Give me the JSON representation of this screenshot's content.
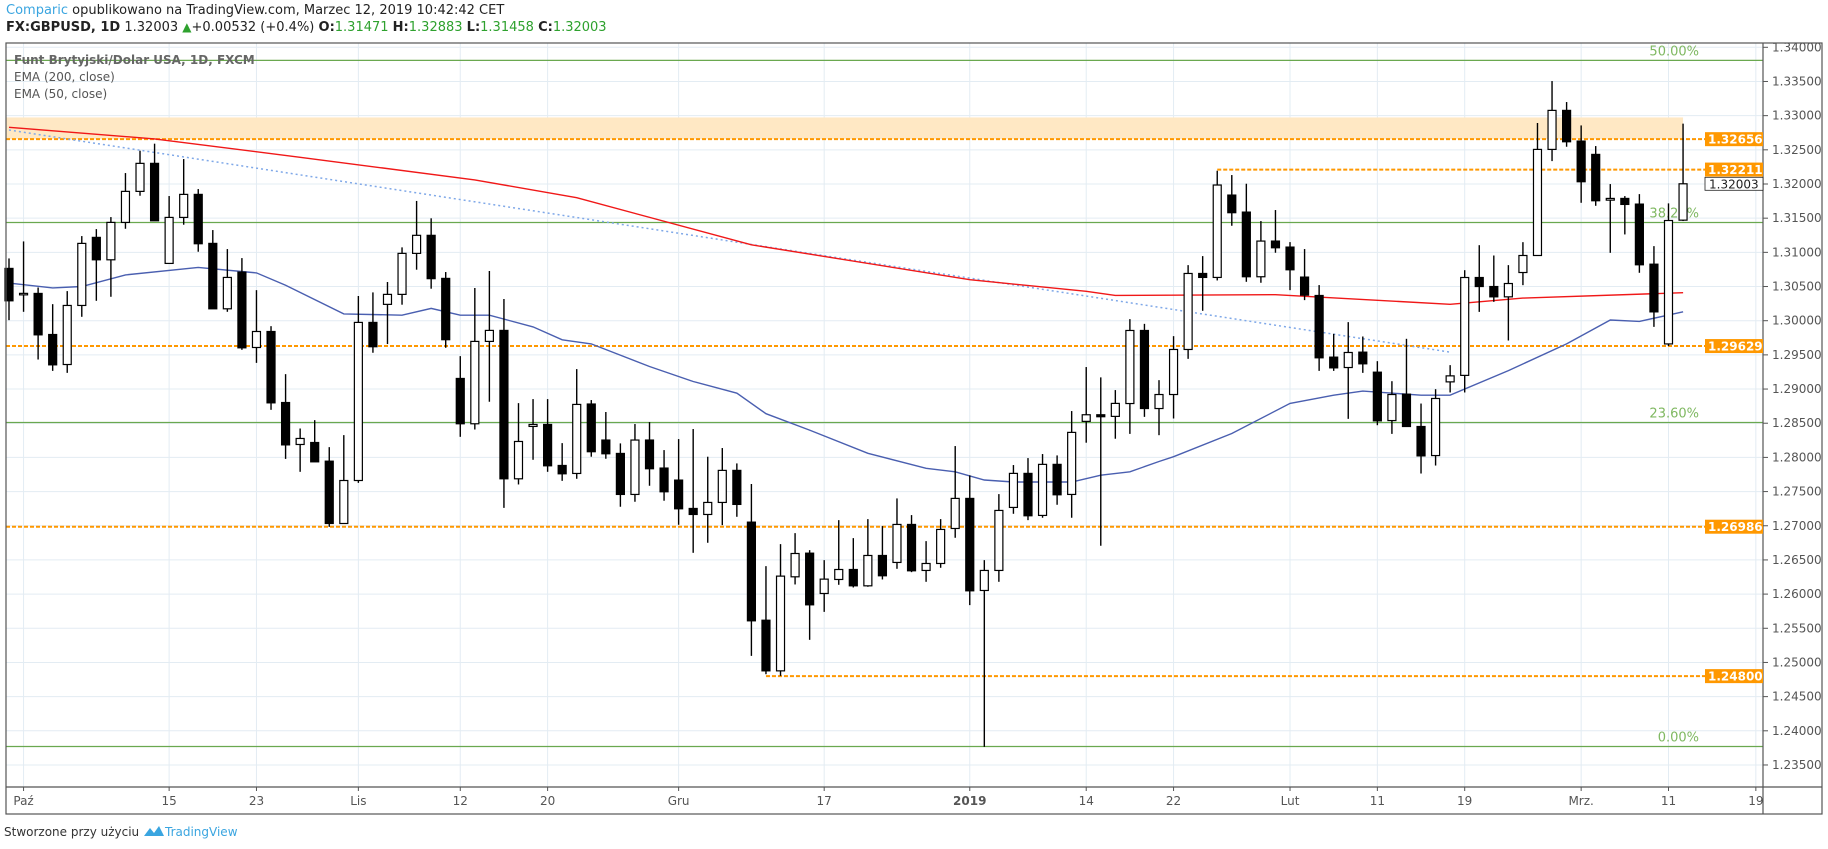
{
  "header": {
    "brand": "Comparic",
    "published": " opublikowano na TradingView.com, Marzec 12, 2019 10:42:42 CET",
    "symbol": "FX:GBPUSD, 1D",
    "last": "1.32003",
    "change": "+0.00532 (+0.4%)",
    "o_label": "O:",
    "o": "1.31471",
    "h_label": "H:",
    "h": "1.32883",
    "l_label": "L:",
    "l": "1.31458",
    "c_label": "C:",
    "c": "1.32003"
  },
  "legend": {
    "title": "Funt Brytyjski/Dolar USA, 1D, FXCM",
    "ema200": "EMA (200, close)",
    "ema50": "EMA (50, close)"
  },
  "footer": {
    "made_with": "Stworzone przy użyciu",
    "logo_text": "TradingView"
  },
  "colors": {
    "up": "#ffffff",
    "down": "#000000",
    "ema200": "#f01818",
    "ema50": "#4a5fb0",
    "trend": "#7fa8e8",
    "fib": "#6aa84f",
    "level": "#ff9800",
    "zone": "#ffe8c4",
    "grid": "#e3ecf3"
  },
  "chart_data": {
    "type": "candlestick",
    "symbol": "GBPUSD",
    "interval": "1D",
    "ylim": [
      1.2325,
      1.341
    ],
    "y_ticks": [
      "1.34000",
      "1.33500",
      "1.33000",
      "1.32500",
      "1.32000",
      "1.31500",
      "1.31000",
      "1.30500",
      "1.30000",
      "1.29500",
      "1.29000",
      "1.28500",
      "1.28000",
      "1.27500",
      "1.27000",
      "1.26500",
      "1.26000",
      "1.25500",
      "1.25000",
      "1.24500",
      "1.24000",
      "1.23500"
    ],
    "x_ticks": [
      {
        "label": "Paź",
        "bar": 1
      },
      {
        "label": "15",
        "bar": 11
      },
      {
        "label": "23",
        "bar": 17
      },
      {
        "label": "Lis",
        "bar": 24
      },
      {
        "label": "12",
        "bar": 31
      },
      {
        "label": "20",
        "bar": 37
      },
      {
        "label": "Gru",
        "bar": 46
      },
      {
        "label": "17",
        "bar": 56
      },
      {
        "label": "2019",
        "bar": 66,
        "bold": true
      },
      {
        "label": "14",
        "bar": 74
      },
      {
        "label": "22",
        "bar": 80
      },
      {
        "label": "Lut",
        "bar": 88
      },
      {
        "label": "11",
        "bar": 94
      },
      {
        "label": "19",
        "bar": 100
      },
      {
        "label": "Mrz.",
        "bar": 108
      },
      {
        "label": "11",
        "bar": 114
      },
      {
        "label": "19",
        "bar": 120
      }
    ],
    "ohlc": [
      [
        1.30765,
        1.30911,
        1.30008,
        1.30291
      ],
      [
        1.30394,
        1.3116,
        1.3013,
        1.304
      ],
      [
        1.30399,
        1.30486,
        1.29432,
        1.29793
      ],
      [
        1.29798,
        1.30242,
        1.29266,
        1.29354
      ],
      [
        1.29359,
        1.30433,
        1.29237,
        1.30223
      ],
      [
        1.30223,
        1.31238,
        1.30057,
        1.31131
      ],
      [
        1.31219,
        1.3134,
        1.30291,
        1.30891
      ],
      [
        1.30891,
        1.31516,
        1.3035,
        1.31438
      ],
      [
        1.31438,
        1.3216,
        1.31345,
        1.31892
      ],
      [
        1.31892,
        1.32487,
        1.31828,
        1.32302
      ],
      [
        1.32302,
        1.3259,
        1.31462,
        1.31462
      ],
      [
        1.30838,
        1.31824,
        1.30838,
        1.31511
      ],
      [
        1.31511,
        1.32365,
        1.31404,
        1.31848
      ],
      [
        1.31848,
        1.31926,
        1.31009,
        1.31126
      ],
      [
        1.31131,
        1.31326,
        1.30174,
        1.30174
      ],
      [
        1.30174,
        1.31048,
        1.3013,
        1.30633
      ],
      [
        1.30711,
        1.30916,
        1.29574,
        1.29603
      ],
      [
        1.29608,
        1.30447,
        1.29383,
        1.29842
      ],
      [
        1.29842,
        1.2992,
        1.28696,
        1.28798
      ],
      [
        1.28803,
        1.29218,
        1.27978,
        1.28183
      ],
      [
        1.28189,
        1.28423,
        1.27789,
        1.28277
      ],
      [
        1.28218,
        1.28545,
        1.27935,
        1.27935
      ],
      [
        1.27945,
        1.2815,
        1.26984,
        1.27033
      ],
      [
        1.27033,
        1.28326,
        1.27033,
        1.27662
      ],
      [
        1.27662,
        1.30361,
        1.27628,
        1.29975
      ],
      [
        1.29975,
        1.30414,
        1.29531,
        1.29619
      ],
      [
        1.30239,
        1.30566,
        1.29658,
        1.30385
      ],
      [
        1.30385,
        1.31073,
        1.30234,
        1.30985
      ],
      [
        1.30985,
        1.31752,
        1.30746,
        1.31249
      ],
      [
        1.31249,
        1.31498,
        1.30468,
        1.30615
      ],
      [
        1.30619,
        1.30712,
        1.29604,
        1.29722
      ],
      [
        1.29155,
        1.29482,
        1.28301,
        1.28492
      ],
      [
        1.28492,
        1.30478,
        1.28409,
        1.29697
      ],
      [
        1.29697,
        1.30727,
        1.28814,
        1.29858
      ],
      [
        1.29858,
        1.30317,
        1.27262,
        1.27687
      ],
      [
        1.27687,
        1.28794,
        1.27604,
        1.28233
      ],
      [
        1.28453,
        1.28853,
        1.27965,
        1.28482
      ],
      [
        1.28482,
        1.28853,
        1.27789,
        1.27877
      ],
      [
        1.27882,
        1.28209,
        1.27657,
        1.2776
      ],
      [
        1.27765,
        1.29292,
        1.27687,
        1.28775
      ],
      [
        1.28781,
        1.28839,
        1.2801,
        1.28083
      ],
      [
        1.28254,
        1.28664,
        1.2798,
        1.28053
      ],
      [
        1.28058,
        1.28205,
        1.27278,
        1.27458
      ],
      [
        1.27458,
        1.28488,
        1.27351,
        1.28254
      ],
      [
        1.28254,
        1.28517,
        1.27585,
        1.27834
      ],
      [
        1.27844,
        1.28107,
        1.27366,
        1.27497
      ],
      [
        1.27668,
        1.28268,
        1.27014,
        1.27248
      ],
      [
        1.27253,
        1.28415,
        1.26604,
        1.27165
      ],
      [
        1.27165,
        1.2801,
        1.26751,
        1.27341
      ],
      [
        1.27341,
        1.28137,
        1.27009,
        1.2781
      ],
      [
        1.2781,
        1.27912,
        1.27131,
        1.27312
      ],
      [
        1.27053,
        1.2761,
        1.25096,
        1.25609
      ],
      [
        1.25618,
        1.26409,
        1.24828,
        1.24877
      ],
      [
        1.24877,
        1.26731,
        1.24804,
        1.26263
      ],
      [
        1.26253,
        1.26892,
        1.26141,
        1.26594
      ],
      [
        1.26599,
        1.26643,
        1.25331,
        1.25843
      ],
      [
        1.26009,
        1.26497,
        1.2574,
        1.26219
      ],
      [
        1.26214,
        1.27082,
        1.26136,
        1.2636
      ],
      [
        1.2636,
        1.26819,
        1.26097,
        1.26121
      ],
      [
        1.26121,
        1.27097,
        1.26107,
        1.26565
      ],
      [
        1.26565,
        1.26995,
        1.26214,
        1.26268
      ],
      [
        1.26463,
        1.274,
        1.2637,
        1.27019
      ],
      [
        1.27019,
        1.27156,
        1.26321,
        1.26341
      ],
      [
        1.26346,
        1.26775,
        1.2618,
        1.26448
      ],
      [
        1.26448,
        1.27097,
        1.26385,
        1.26946
      ],
      [
        1.2696,
        1.28166,
        1.26824,
        1.274
      ],
      [
        1.274,
        1.27737,
        1.25838,
        1.26048
      ],
      [
        1.26053,
        1.26497,
        1.23764,
        1.26346
      ],
      [
        1.26346,
        1.27463,
        1.2618,
        1.27224
      ],
      [
        1.27268,
        1.27888,
        1.27175,
        1.27766
      ],
      [
        1.27766,
        1.2799,
        1.27082,
        1.27146
      ],
      [
        1.27151,
        1.28049,
        1.27117,
        1.27898
      ],
      [
        1.27898,
        1.28029,
        1.27307,
        1.27453
      ],
      [
        1.27458,
        1.28678,
        1.27117,
        1.28366
      ],
      [
        1.28527,
        1.29322,
        1.28215,
        1.28624
      ],
      [
        1.28624,
        1.29171,
        1.26707,
        1.28595
      ],
      [
        1.286,
        1.28985,
        1.28273,
        1.2879
      ],
      [
        1.28788,
        1.30023,
        1.28344,
        1.29857
      ],
      [
        1.29857,
        1.29954,
        1.28593,
        1.28715
      ],
      [
        1.28715,
        1.2913,
        1.28325,
        1.2892
      ],
      [
        1.2892,
        1.29774,
        1.28569,
        1.29579
      ],
      [
        1.29579,
        1.30813,
        1.29442,
        1.30691
      ],
      [
        1.30691,
        1.30945,
        1.30145,
        1.30633
      ],
      [
        1.30633,
        1.32194,
        1.30589,
        1.31985
      ],
      [
        1.31838,
        1.32131,
        1.31389,
        1.3158
      ],
      [
        1.31589,
        1.32004,
        1.30569,
        1.30643
      ],
      [
        1.30643,
        1.31458,
        1.30555,
        1.31165
      ],
      [
        1.31165,
        1.31619,
        1.30994,
        1.31067
      ],
      [
        1.31077,
        1.3115,
        1.30447,
        1.30745
      ],
      [
        1.30638,
        1.31048,
        1.30301,
        1.30374
      ],
      [
        1.30369,
        1.30521,
        1.29266,
        1.29457
      ],
      [
        1.29467,
        1.29808,
        1.29266,
        1.2931
      ],
      [
        1.29315,
        1.29979,
        1.28564,
        1.29535
      ],
      [
        1.2954,
        1.29769,
        1.29237,
        1.29369
      ],
      [
        1.29247,
        1.29408,
        1.28471,
        1.28535
      ],
      [
        1.28539,
        1.29115,
        1.28344,
        1.2892
      ],
      [
        1.28925,
        1.29735,
        1.28452,
        1.28452
      ],
      [
        1.28452,
        1.28788,
        1.27764,
        1.28022
      ],
      [
        1.28027,
        1.28998,
        1.27881,
        1.28862
      ],
      [
        1.29105,
        1.2935,
        1.2895,
        1.29193
      ],
      [
        1.292,
        1.30739,
        1.2895,
        1.30632
      ],
      [
        1.30632,
        1.31105,
        1.30129,
        1.305
      ],
      [
        1.305,
        1.30954,
        1.30276,
        1.30349
      ],
      [
        1.30349,
        1.30813,
        1.2971,
        1.30544
      ],
      [
        1.30705,
        1.31149,
        1.3052,
        1.30954
      ],
      [
        1.30954,
        1.32892,
        1.30954,
        1.32506
      ],
      [
        1.32506,
        1.33506,
        1.32335,
        1.33077
      ],
      [
        1.33077,
        1.33199,
        1.32545,
        1.32618
      ],
      [
        1.32628,
        1.32857,
        1.31725,
        1.32033
      ],
      [
        1.32433,
        1.32555,
        1.31681,
        1.31755
      ],
      [
        1.31764,
        1.31999,
        1.30993,
        1.31789
      ],
      [
        1.31789,
        1.31823,
        1.31262,
        1.31701
      ],
      [
        1.31706,
        1.31852,
        1.30701,
        1.30818
      ],
      [
        1.30827,
        1.31091,
        1.2991,
        1.30129
      ],
      [
        1.2966,
        1.31716,
        1.2963,
        1.31466
      ],
      [
        1.31471,
        1.32883,
        1.31458,
        1.32003
      ]
    ],
    "ema200": {
      "label": "EMA (200, close)",
      "points": [
        [
          0,
          1.3283
        ],
        [
          10,
          1.3266
        ],
        [
          20,
          1.3239
        ],
        [
          32,
          1.3206
        ],
        [
          39,
          1.318
        ],
        [
          51,
          1.3111
        ],
        [
          66,
          1.306
        ],
        [
          74,
          1.3043
        ],
        [
          76,
          1.3037
        ],
        [
          87,
          1.3038
        ],
        [
          99,
          1.3024
        ],
        [
          104,
          1.3033
        ],
        [
          115,
          1.3041
        ]
      ]
    },
    "ema50": {
      "label": "EMA (50, close)",
      "points": [
        [
          0,
          1.3055
        ],
        [
          3,
          1.3048
        ],
        [
          5,
          1.305
        ],
        [
          8,
          1.3067
        ],
        [
          13,
          1.3078
        ],
        [
          17,
          1.307
        ],
        [
          19,
          1.3052
        ],
        [
          23,
          1.301
        ],
        [
          27,
          1.3008
        ],
        [
          29,
          1.3018
        ],
        [
          31,
          1.3008
        ],
        [
          33,
          1.3008
        ],
        [
          36,
          1.2991
        ],
        [
          38,
          1.2972
        ],
        [
          40,
          1.2966
        ],
        [
          44,
          1.2933
        ],
        [
          47,
          1.2911
        ],
        [
          50,
          1.2894
        ],
        [
          52,
          1.2864
        ],
        [
          55,
          1.284
        ],
        [
          59,
          1.2806
        ],
        [
          63,
          1.2784
        ],
        [
          65,
          1.2779
        ],
        [
          67,
          1.2767
        ],
        [
          69,
          1.2764
        ],
        [
          73,
          1.2764
        ],
        [
          75,
          1.2774
        ],
        [
          77,
          1.2779
        ],
        [
          79,
          1.2794
        ],
        [
          80,
          1.2801
        ],
        [
          84,
          1.2835
        ],
        [
          88,
          1.2879
        ],
        [
          91,
          1.2891
        ],
        [
          93,
          1.2897
        ],
        [
          97,
          1.2891
        ],
        [
          99,
          1.2891
        ],
        [
          103,
          1.2927
        ],
        [
          107,
          1.2966
        ],
        [
          110,
          1.3001
        ],
        [
          112,
          1.2999
        ],
        [
          115,
          1.3013
        ]
      ]
    },
    "trendline": {
      "from": [
        0,
        1.3279
      ],
      "to": [
        99,
        1.2954
      ]
    },
    "fib_levels": [
      {
        "label": "50.00%",
        "price": 1.33809
      },
      {
        "label": "38.20%",
        "price": 1.31437
      },
      {
        "label": "23.60%",
        "price": 1.28511
      },
      {
        "label": "0.00%",
        "price": 1.2377
      }
    ],
    "levels": [
      {
        "label": "1.32656",
        "price": 1.32656,
        "from_bar": -1
      },
      {
        "label": "1.32211",
        "price": 1.32211,
        "from_bar": 83
      },
      {
        "label": "1.29629",
        "price": 1.29629,
        "from_bar": -1
      },
      {
        "label": "1.26986",
        "price": 1.26986,
        "from_bar": -1
      },
      {
        "label": "1.24800",
        "price": 1.248,
        "from_bar": 52
      }
    ],
    "zone": {
      "top": 1.32974,
      "bottom": 1.32656,
      "to_bar": 115
    },
    "last_price": {
      "label": "1.32003",
      "price": 1.32003
    }
  }
}
